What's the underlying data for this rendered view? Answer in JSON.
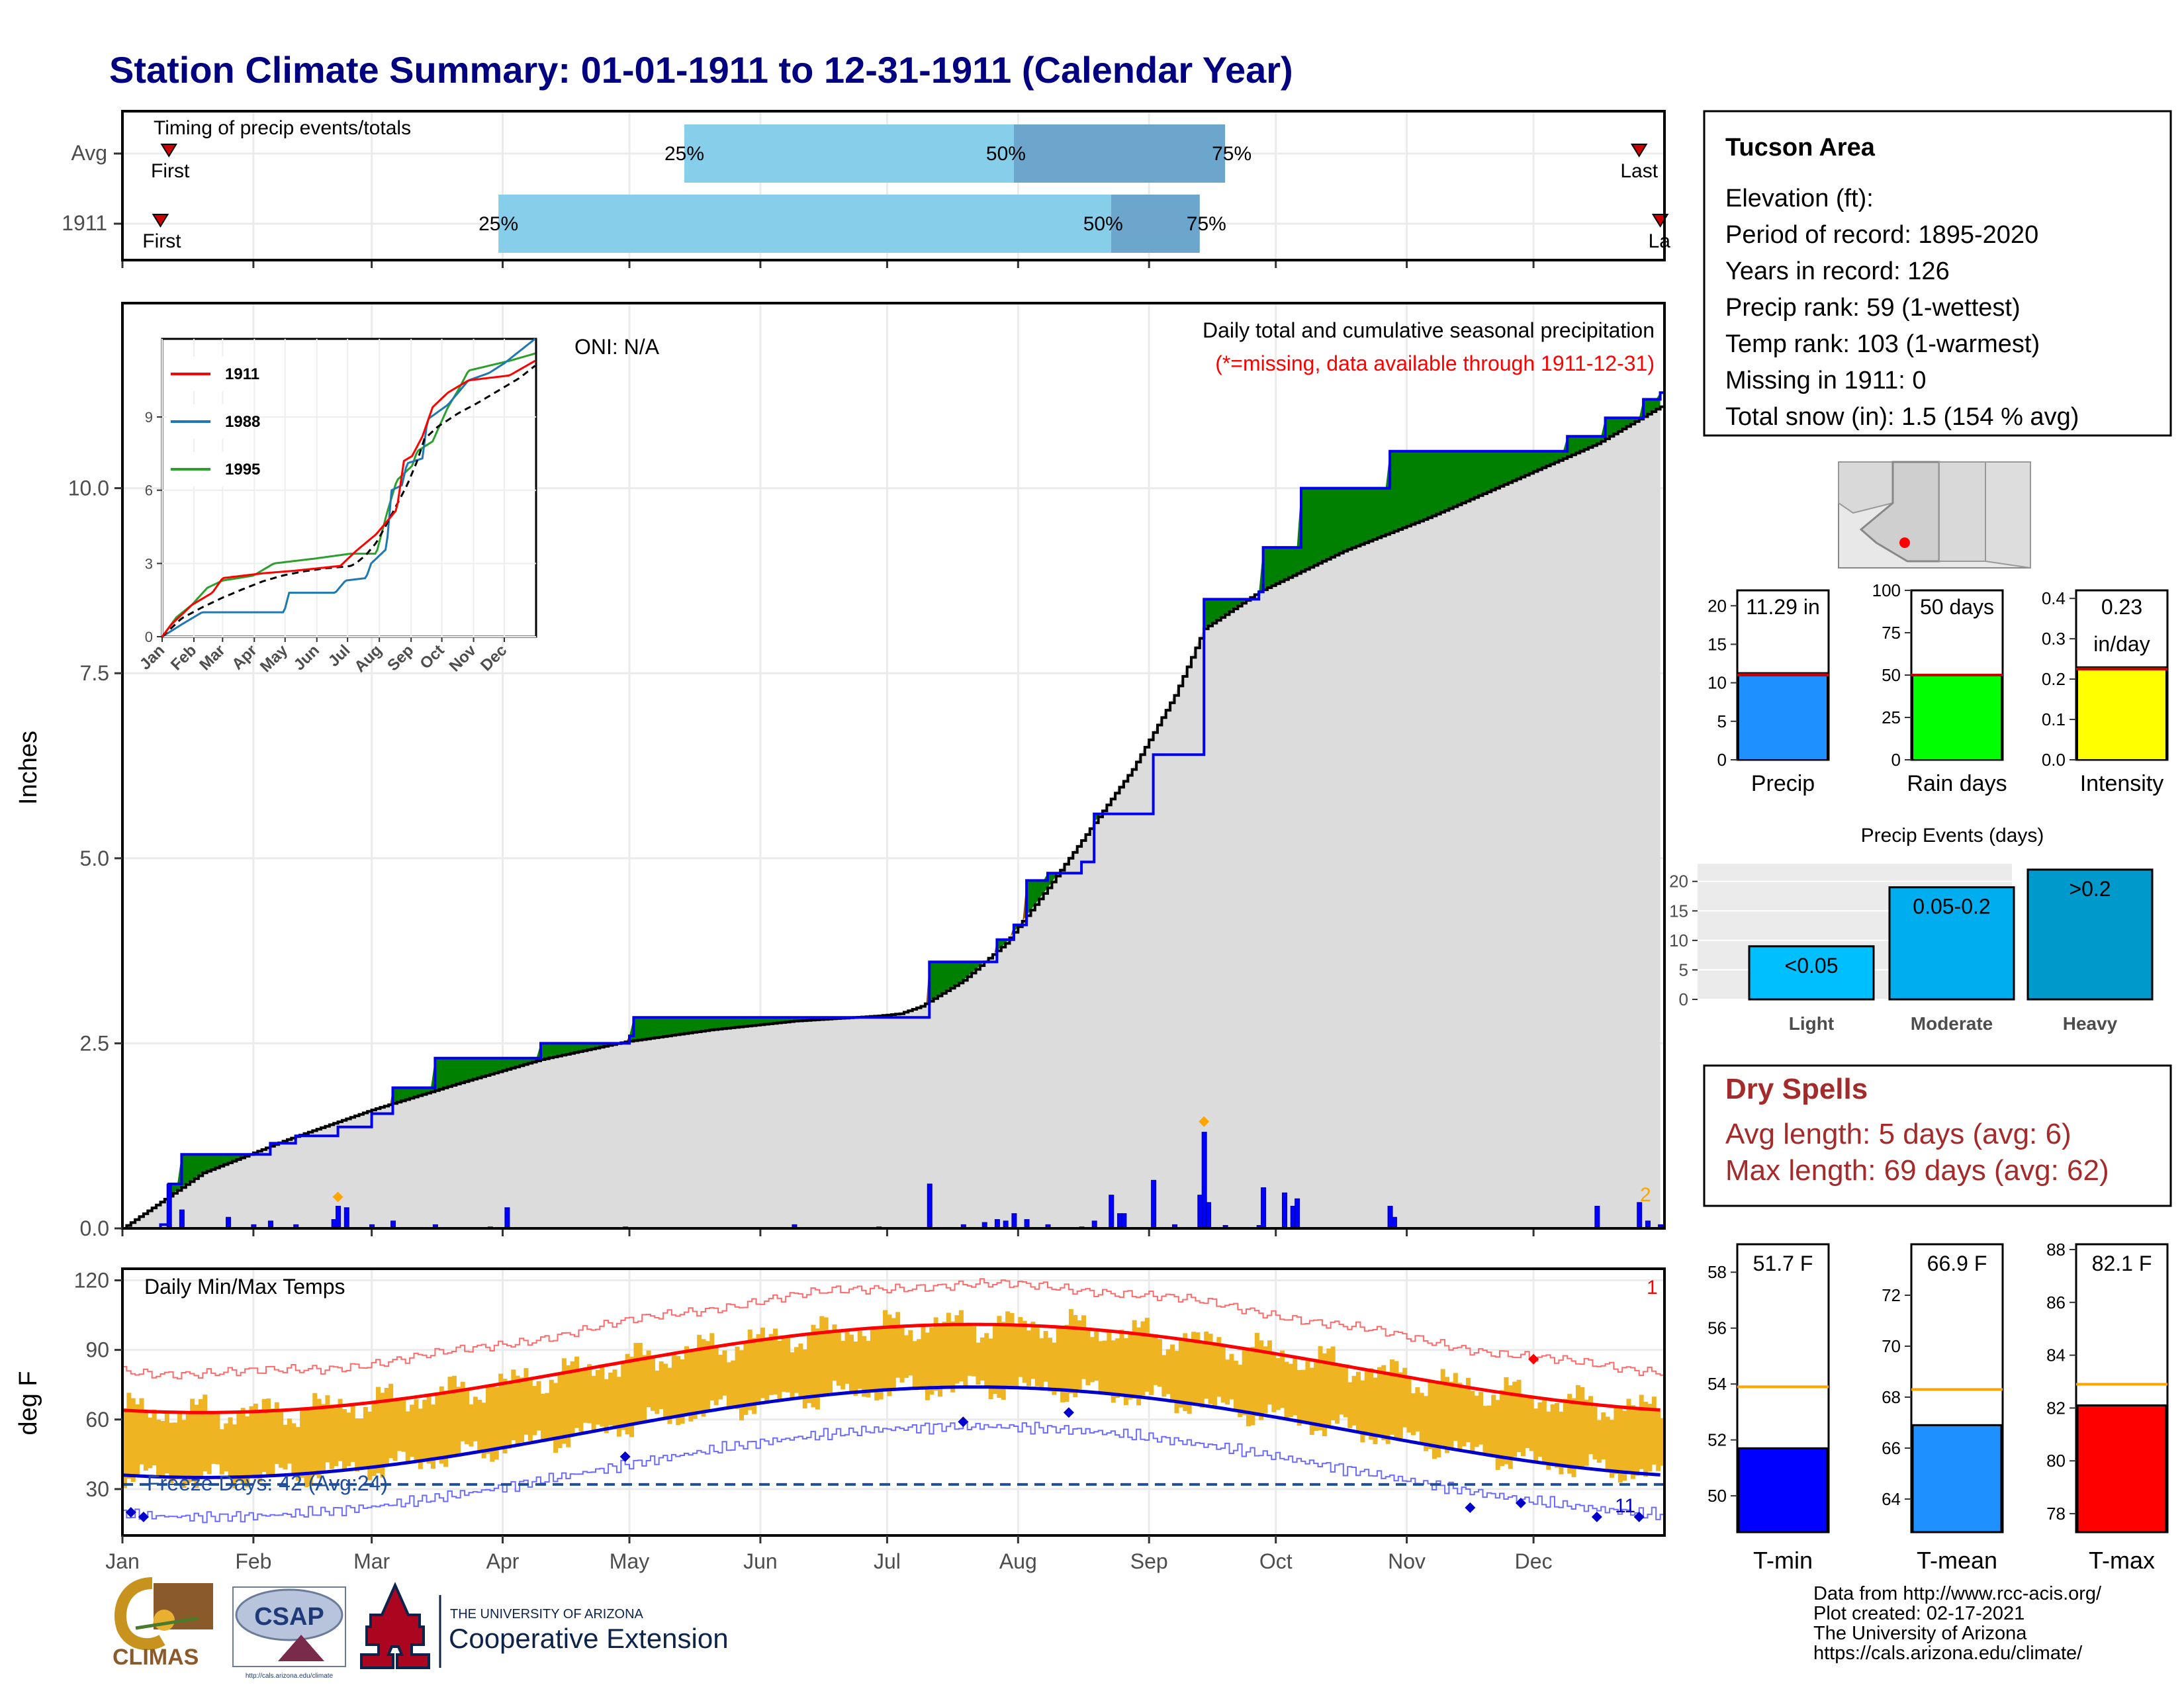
{
  "title": "Station Climate Summary: 01-01-1911 to 12-31-1911 (Calendar Year)",
  "colors": {
    "title": "#000080",
    "green_surplus": "#008000",
    "brown_deficit": "#8B5A00",
    "avg_fill": "#DCDCDC",
    "precip_bar": "#0000FF",
    "light_blue": "#87CEEB",
    "mid_blue": "#6CA6CD",
    "temp_bar": "#EEB422",
    "red": "#FF0000",
    "blue": "#0000CC",
    "dry_spell": "#A52A2A"
  },
  "months": [
    "Jan",
    "Feb",
    "Mar",
    "Apr",
    "May",
    "Jun",
    "Jul",
    "Aug",
    "Sep",
    "Oct",
    "Nov",
    "Dec"
  ],
  "timing_panel": {
    "title": "Timing of precip events/totals",
    "rows": [
      {
        "label": "Avg",
        "first_label": "First",
        "last_label": "Last",
        "first_doy": 12,
        "last_doy": 360,
        "p25_doy": 134,
        "p50_doy": 212,
        "p75_doy": 262,
        "p25_label": "25%",
        "p50_label": "50%",
        "p75_label": "75%"
      },
      {
        "label": "1911",
        "first_label": "First",
        "last_label": "La",
        "first_doy": 10,
        "last_doy": 365,
        "p25_doy": 90,
        "p50_doy": 235,
        "p75_doy": 256,
        "p25_label": "25%",
        "p50_label": "50%",
        "p75_label": "75%"
      }
    ]
  },
  "precip_panel": {
    "ylabel": "Inches",
    "yticks": [
      "0.0",
      "2.5",
      "5.0",
      "7.5",
      "10.0"
    ],
    "oni": "ONI: N/A",
    "note1": "Daily total and cumulative seasonal precipitation",
    "note2": "(*=missing, data available through 1911-12-31)",
    "extreme_count": "2"
  },
  "inset": {
    "yticks": [
      "0",
      "3",
      "6",
      "9"
    ],
    "months": [
      "Jan",
      "Feb",
      "Mar",
      "Apr",
      "May",
      "Jun",
      "Jul",
      "Aug",
      "Sep",
      "Oct",
      "Nov",
      "Dec"
    ],
    "legend": [
      {
        "name": "1911",
        "color": "#FF0000"
      },
      {
        "name": "1988",
        "color": "#1F77B4"
      },
      {
        "name": "1995",
        "color": "#2CA02C"
      }
    ]
  },
  "temp_panel": {
    "title": "Daily Min/Max Temps",
    "ylabel": "deg F",
    "yticks": [
      "30",
      "60",
      "90",
      "120"
    ],
    "freeze_text": "Freeze Days: 42 (Avg:24)",
    "record_high_count": "1",
    "record_low_count": "11"
  },
  "station_box": {
    "name": "Tucson Area",
    "lines": [
      "Elevation (ft):",
      "Period of record: 1895-2020",
      "Years in record: 126",
      "Precip rank: 59 (1-wettest)",
      "Temp rank: 103 (1-warmest)",
      "Missing in 1911: 0",
      "Total snow (in): 1.5 (154 % avg)"
    ]
  },
  "summary_bars": [
    {
      "label": "Precip",
      "value_text": "11.29 in",
      "value": 11.29,
      "avg": 11.0,
      "ymax": 22,
      "ticks": [
        "0",
        "5",
        "10",
        "15",
        "20"
      ],
      "color": "#1E90FF"
    },
    {
      "label": "Rain days",
      "value_text": "50 days",
      "value": 50,
      "avg": 50,
      "ymax": 100,
      "ticks": [
        "0",
        "25",
        "50",
        "75",
        "100"
      ],
      "color": "#00FF00"
    },
    {
      "label": "Intensity",
      "value_text": "0.23",
      "value_text2": "in/day",
      "value": 0.23,
      "avg": 0.225,
      "ymax": 0.42,
      "ticks": [
        "0.0",
        "0.1",
        "0.2",
        "0.3",
        "0.4"
      ],
      "color": "#FFFF00"
    }
  ],
  "precip_events": {
    "title": "Precip Events (days)",
    "ticks": [
      "0",
      "5",
      "10",
      "15",
      "20"
    ],
    "ymax": 23,
    "bars": [
      {
        "label": "Light",
        "inner": "<0.05",
        "value": 9,
        "color": "#00BFFF"
      },
      {
        "label": "Moderate",
        "inner": "0.05-0.2",
        "value": 19,
        "color": "#00AEEF"
      },
      {
        "label": "Heavy",
        "inner": ">0.2",
        "value": 22,
        "color": "#0099CC"
      }
    ]
  },
  "dry_spells": {
    "title": "Dry Spells",
    "avg_line": "Avg length: 5 days (avg: 6)",
    "max_line": "Max length: 69 days (avg: 62)"
  },
  "temp_bars": [
    {
      "label": "T-min",
      "value_text": "51.7 F",
      "value": 51.7,
      "avg": 53.9,
      "ymin": 48.7,
      "ymax": 59,
      "ticks": [
        "50",
        "52",
        "54",
        "56",
        "58"
      ],
      "color": "#0000FF"
    },
    {
      "label": "T-mean",
      "value_text": "66.9 F",
      "value": 66.9,
      "avg": 68.3,
      "ymin": 62.7,
      "ymax": 74,
      "ticks": [
        "64",
        "66",
        "68",
        "70",
        "72"
      ],
      "color": "#1E90FF"
    },
    {
      "label": "T-max",
      "value_text": "82.1 F",
      "value": 82.1,
      "avg": 82.9,
      "ymin": 77.3,
      "ymax": 88.2,
      "ticks": [
        "78",
        "80",
        "82",
        "84",
        "86",
        "88"
      ],
      "color": "#FF0000"
    }
  ],
  "footer": {
    "lines": [
      "Data from http://www.rcc-acis.org/",
      "Plot created: 02-17-2021",
      "The University of Arizona",
      "https://cals.arizona.edu/climate/"
    ],
    "climas": "CLIMAS",
    "csap": "CSAP",
    "csap_url": "http://cals.arizona.edu/climate",
    "ua_small": "THE UNIVERSITY OF ARIZONA",
    "ua_big": "Cooperative Extension"
  },
  "chart_data": {
    "type": "area",
    "title": "Daily total and cumulative seasonal precipitation",
    "ylabel": "Inches",
    "ylim": [
      0,
      12.5
    ],
    "cumulative_1911": [
      [
        1,
        0
      ],
      [
        10,
        0.05
      ],
      [
        12,
        0.6
      ],
      [
        15,
        1.0
      ],
      [
        32,
        1.0
      ],
      [
        36,
        1.15
      ],
      [
        42,
        1.25
      ],
      [
        52,
        1.37
      ],
      [
        60,
        1.55
      ],
      [
        65,
        1.9
      ],
      [
        75,
        2.3
      ],
      [
        98,
        2.3
      ],
      [
        100,
        2.5
      ],
      [
        121,
        2.6
      ],
      [
        122,
        2.85
      ],
      [
        160,
        2.85
      ],
      [
        168,
        2.85
      ],
      [
        191,
        2.85
      ],
      [
        192,
        3.6
      ],
      [
        205,
        3.6
      ],
      [
        208,
        3.9
      ],
      [
        212,
        4.1
      ],
      [
        215,
        4.7
      ],
      [
        220,
        4.8
      ],
      [
        228,
        4.95
      ],
      [
        231,
        5.6
      ],
      [
        240,
        5.6
      ],
      [
        245,
        6.4
      ],
      [
        256,
        6.4
      ],
      [
        257,
        8.5
      ],
      [
        261,
        8.5
      ],
      [
        270,
        8.6
      ],
      [
        271,
        9.2
      ],
      [
        279,
        9.2
      ],
      [
        280,
        10.0
      ],
      [
        295,
        10.0
      ],
      [
        301,
        10.5
      ],
      [
        342,
        10.5
      ],
      [
        343,
        10.7
      ],
      [
        350,
        10.7
      ],
      [
        352,
        10.95
      ],
      [
        360,
        10.95
      ],
      [
        361,
        11.2
      ],
      [
        365,
        11.29
      ]
    ],
    "cumulative_avg": [
      [
        1,
        0
      ],
      [
        20,
        0.75
      ],
      [
        40,
        1.2
      ],
      [
        60,
        1.6
      ],
      [
        80,
        1.95
      ],
      [
        100,
        2.28
      ],
      [
        120,
        2.52
      ],
      [
        140,
        2.68
      ],
      [
        160,
        2.8
      ],
      [
        180,
        2.87
      ],
      [
        185,
        2.9
      ],
      [
        190,
        3.0
      ],
      [
        200,
        3.35
      ],
      [
        210,
        3.85
      ],
      [
        220,
        4.6
      ],
      [
        230,
        5.4
      ],
      [
        240,
        6.2
      ],
      [
        250,
        7.2
      ],
      [
        257,
        8.1
      ],
      [
        270,
        8.6
      ],
      [
        290,
        9.15
      ],
      [
        310,
        9.6
      ],
      [
        330,
        10.1
      ],
      [
        350,
        10.6
      ],
      [
        365,
        11.1
      ]
    ],
    "daily_precip": [
      [
        12,
        0.6
      ],
      [
        15,
        0.25
      ],
      [
        26,
        0.15
      ],
      [
        32,
        0.05
      ],
      [
        36,
        0.1
      ],
      [
        42,
        0.05
      ],
      [
        51,
        0.12
      ],
      [
        52,
        0.3
      ],
      [
        54,
        0.28
      ],
      [
        60,
        0.05
      ],
      [
        65,
        0.1
      ],
      [
        75,
        0.05
      ],
      [
        88,
        0.02
      ],
      [
        92,
        0.28
      ],
      [
        120,
        0.02
      ],
      [
        160,
        0.05
      ],
      [
        180,
        0.02
      ],
      [
        192,
        0.6
      ],
      [
        200,
        0.05
      ],
      [
        205,
        0.08
      ],
      [
        208,
        0.12
      ],
      [
        210,
        0.1
      ],
      [
        212,
        0.2
      ],
      [
        215,
        0.12
      ],
      [
        220,
        0.05
      ],
      [
        228,
        0.02
      ],
      [
        231,
        0.1
      ],
      [
        235,
        0.45
      ],
      [
        237,
        0.2
      ],
      [
        238,
        0.2
      ],
      [
        245,
        0.65
      ],
      [
        250,
        0.05
      ],
      [
        256,
        0.45
      ],
      [
        257,
        1.3
      ],
      [
        258,
        0.35
      ],
      [
        262,
        0.04
      ],
      [
        270,
        0.04
      ],
      [
        271,
        0.55
      ],
      [
        276,
        0.48
      ],
      [
        278,
        0.3
      ],
      [
        279,
        0.4
      ],
      [
        301,
        0.3
      ],
      [
        302,
        0.15
      ],
      [
        350,
        0.3
      ],
      [
        360,
        0.35
      ],
      [
        362,
        0.1
      ],
      [
        365,
        0.05
      ]
    ],
    "temps": {
      "type": "bar",
      "ylabel": "deg F",
      "ylim": [
        10,
        125
      ],
      "tmax_avg_jan": 63,
      "tmax_avg_jul": 101,
      "tmin_avg_jan": 35,
      "tmin_avg_jul": 74,
      "freeze_line": 32
    }
  }
}
